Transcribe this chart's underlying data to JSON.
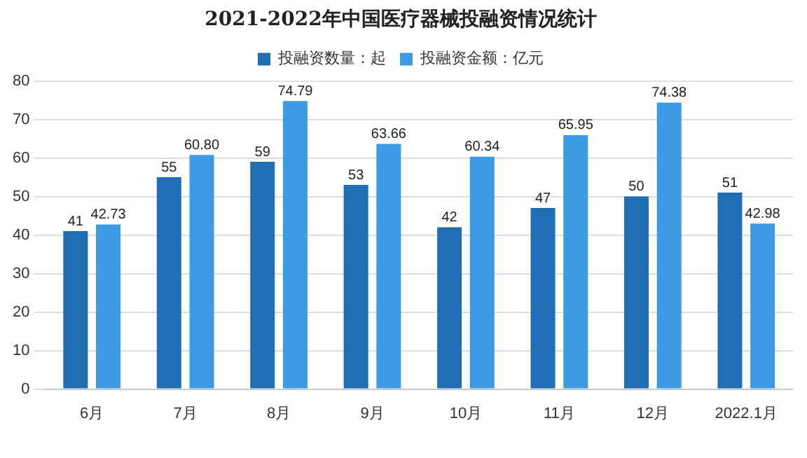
{
  "chart_data": {
    "type": "bar",
    "title": "2021-2022年中国医疗器械投融资情况统计",
    "categories": [
      "6月",
      "7月",
      "8月",
      "9月",
      "10月",
      "11月",
      "12月",
      "2022.1月"
    ],
    "series": [
      {
        "name": "投融资数量：起",
        "color": "#1f6db3",
        "values": [
          41,
          55,
          59,
          53,
          42,
          47,
          50,
          51
        ],
        "value_labels": [
          "41",
          "55",
          "59",
          "53",
          "42",
          "47",
          "50",
          "51"
        ]
      },
      {
        "name": "投融资金额：亿元",
        "color": "#3d9be3",
        "values": [
          42.73,
          60.8,
          74.79,
          63.66,
          60.34,
          65.95,
          74.38,
          42.98
        ],
        "value_labels": [
          "42.73",
          "60.80",
          "74.79",
          "63.66",
          "60.34",
          "65.95",
          "74.38",
          "42.98"
        ]
      }
    ],
    "ylim": [
      0,
      80
    ],
    "yticks": [
      0,
      10,
      20,
      30,
      40,
      50,
      60,
      70,
      80
    ],
    "grid": "y",
    "legend": "top"
  }
}
